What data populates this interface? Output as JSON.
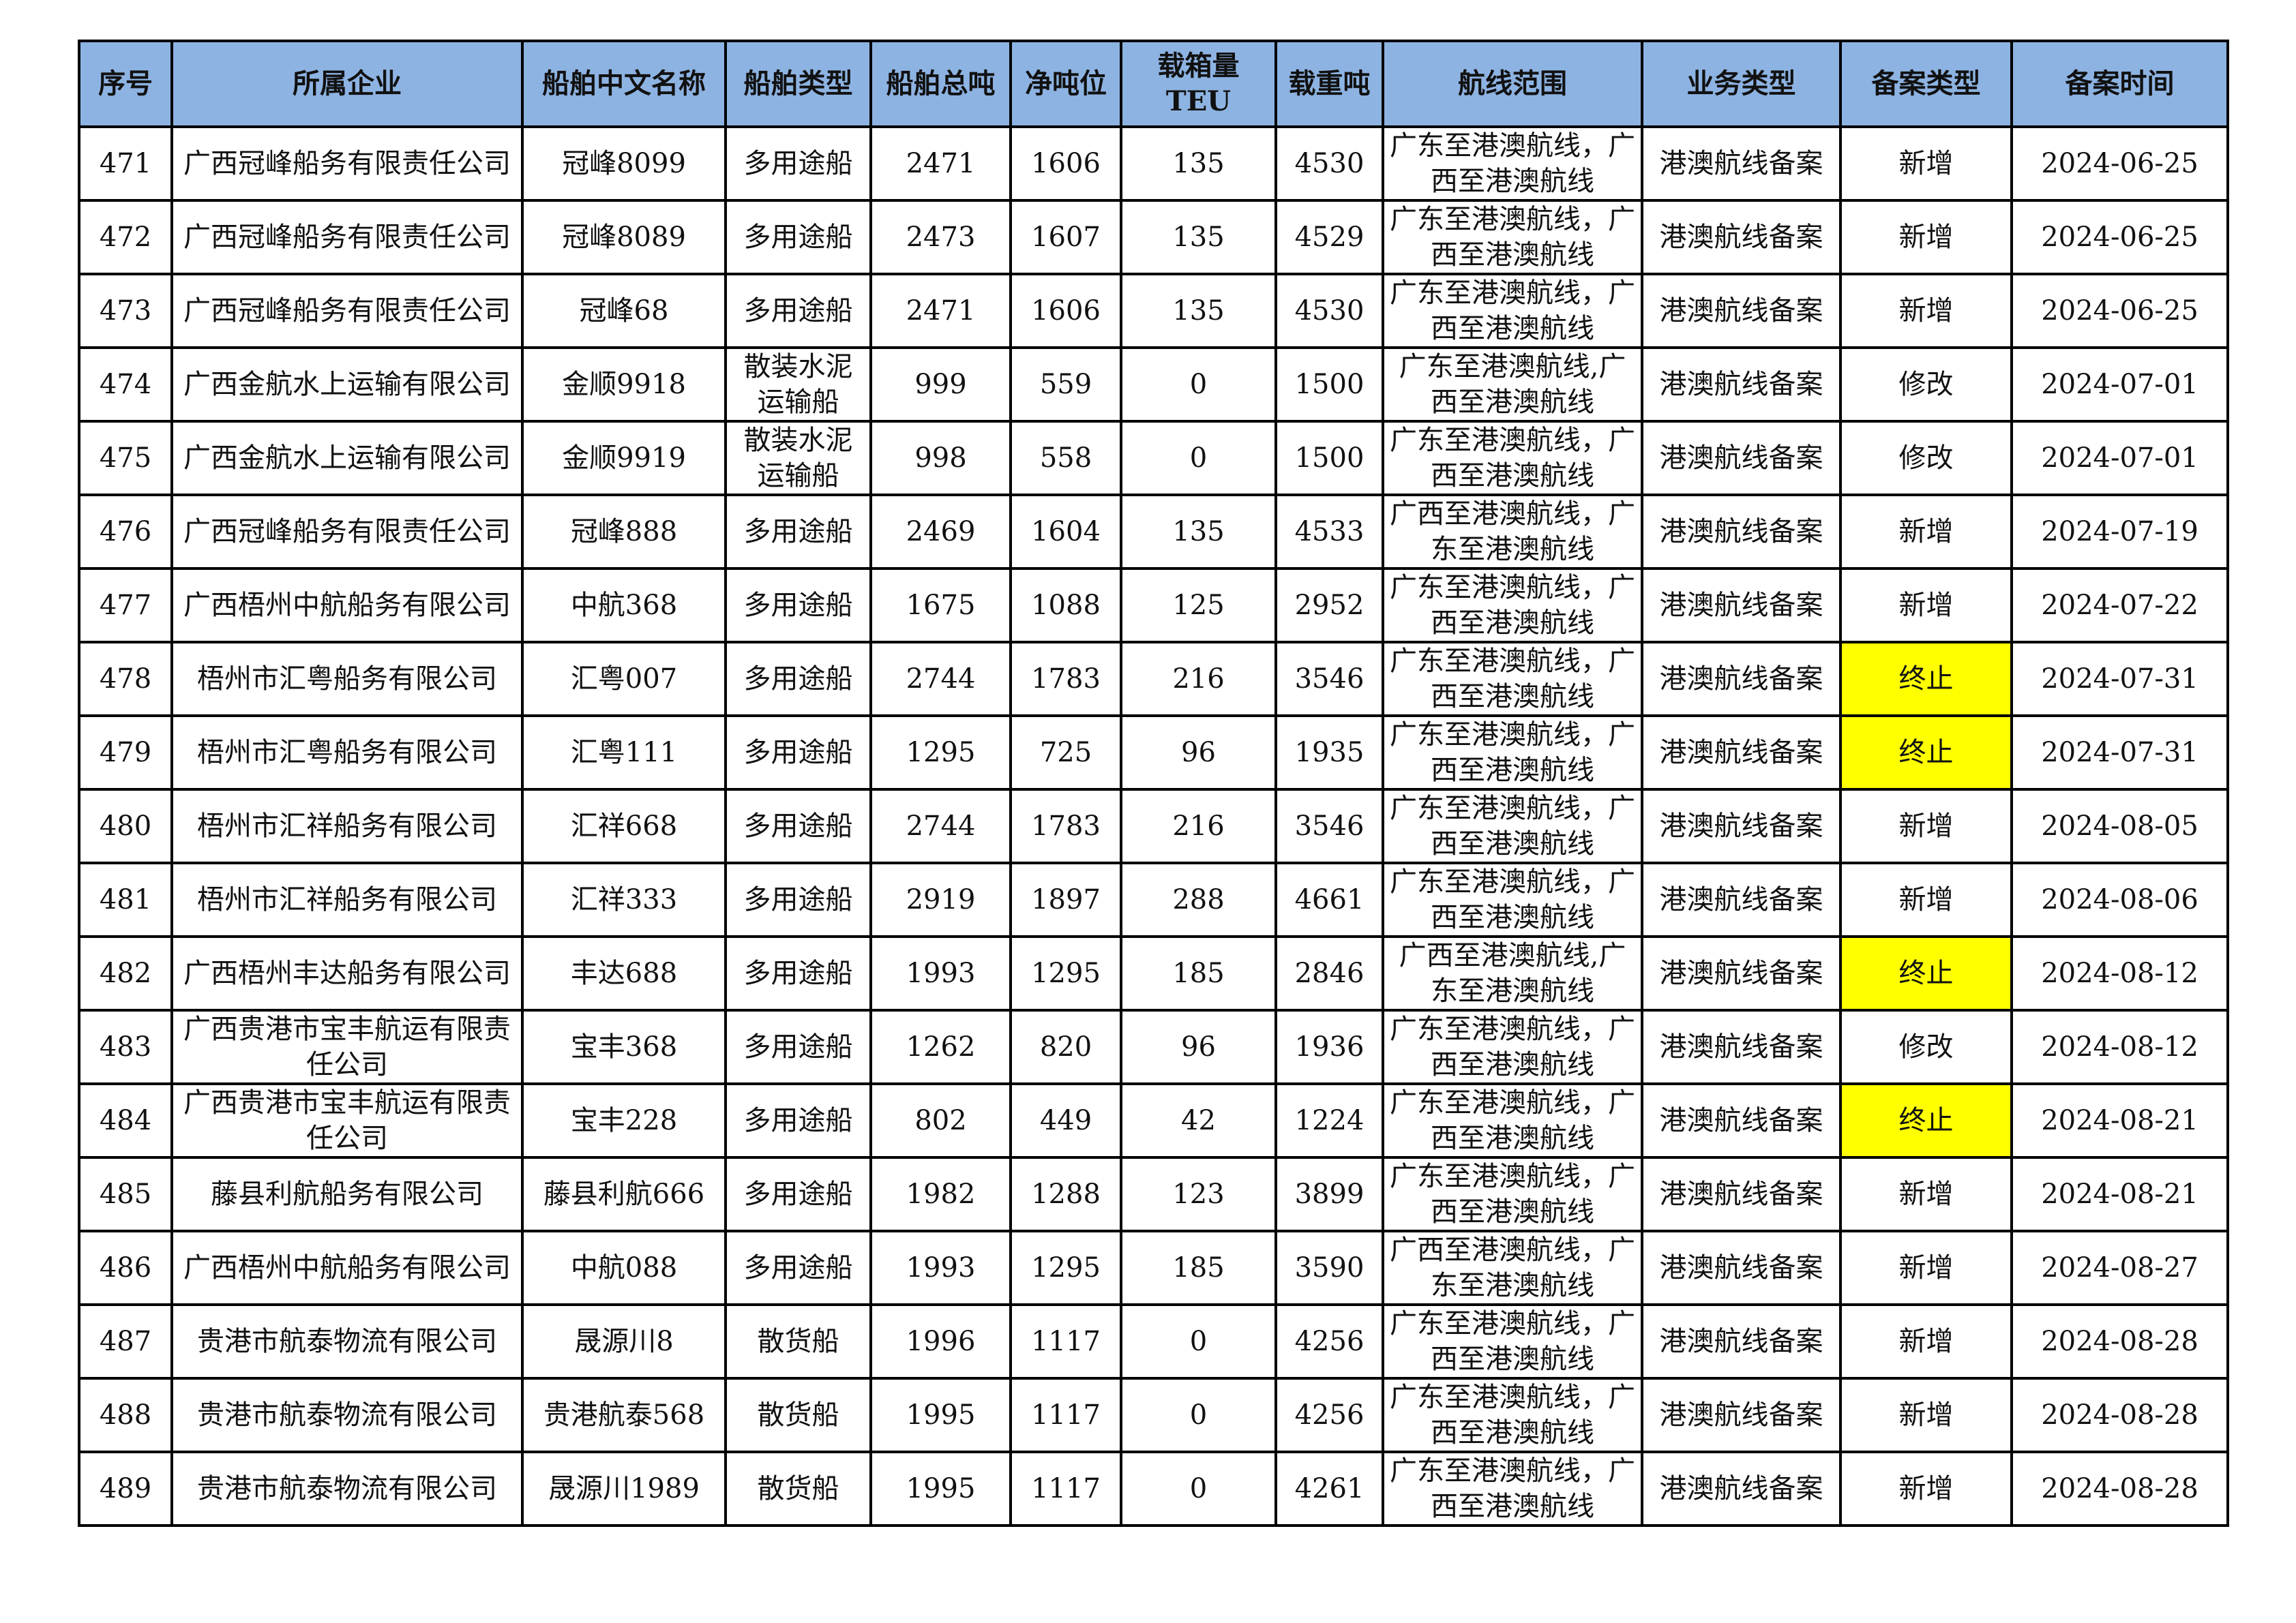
{
  "table": {
    "headers": [
      "序号",
      "所属企业",
      "船舶中文名称",
      "船舶类型",
      "船舶总吨",
      "净吨位",
      "载箱量TEU",
      "载重吨",
      "航线范围",
      "业务类型",
      "备案类型",
      "备案时间"
    ],
    "highlight_color": "#ffff00",
    "header_color": "#8db3e2",
    "rows": [
      [
        "471",
        "广西冠峰船务有限责任公司",
        "冠峰8099",
        "多用途船",
        "2471",
        "1606",
        "135",
        "4530",
        "广东至港澳航线，广西至港澳航线",
        "港澳航线备案",
        "新增",
        "2024-06-25"
      ],
      [
        "472",
        "广西冠峰船务有限责任公司",
        "冠峰8089",
        "多用途船",
        "2473",
        "1607",
        "135",
        "4529",
        "广东至港澳航线，广西至港澳航线",
        "港澳航线备案",
        "新增",
        "2024-06-25"
      ],
      [
        "473",
        "广西冠峰船务有限责任公司",
        "冠峰68",
        "多用途船",
        "2471",
        "1606",
        "135",
        "4530",
        "广东至港澳航线，广西至港澳航线",
        "港澳航线备案",
        "新增",
        "2024-06-25"
      ],
      [
        "474",
        "广西金航水上运输有限公司",
        "金顺9918",
        "散装水泥运输船",
        "999",
        "559",
        "0",
        "1500",
        "广东至港澳航线,广西至港澳航线",
        "港澳航线备案",
        "修改",
        "2024-07-01"
      ],
      [
        "475",
        "广西金航水上运输有限公司",
        "金顺9919",
        "散装水泥运输船",
        "998",
        "558",
        "0",
        "1500",
        "广东至港澳航线，广西至港澳航线",
        "港澳航线备案",
        "修改",
        "2024-07-01"
      ],
      [
        "476",
        "广西冠峰船务有限责任公司",
        "冠峰888",
        "多用途船",
        "2469",
        "1604",
        "135",
        "4533",
        "广西至港澳航线，广东至港澳航线",
        "港澳航线备案",
        "新增",
        "2024-07-19"
      ],
      [
        "477",
        "广西梧州中航船务有限公司",
        "中航368",
        "多用途船",
        "1675",
        "1088",
        "125",
        "2952",
        "广东至港澳航线，广西至港澳航线",
        "港澳航线备案",
        "新增",
        "2024-07-22"
      ],
      [
        "478",
        "梧州市汇粤船务有限公司",
        "汇粤007",
        "多用途船",
        "2744",
        "1783",
        "216",
        "3546",
        "广东至港澳航线，广西至港澳航线",
        "港澳航线备案",
        "终止",
        "2024-07-31"
      ],
      [
        "479",
        "梧州市汇粤船务有限公司",
        "汇粤111",
        "多用途船",
        "1295",
        "725",
        "96",
        "1935",
        "广东至港澳航线，广西至港澳航线",
        "港澳航线备案",
        "终止",
        "2024-07-31"
      ],
      [
        "480",
        "梧州市汇祥船务有限公司",
        "汇祥668",
        "多用途船",
        "2744",
        "1783",
        "216",
        "3546",
        "广东至港澳航线，广西至港澳航线",
        "港澳航线备案",
        "新增",
        "2024-08-05"
      ],
      [
        "481",
        "梧州市汇祥船务有限公司",
        "汇祥333",
        "多用途船",
        "2919",
        "1897",
        "288",
        "4661",
        "广东至港澳航线，广西至港澳航线",
        "港澳航线备案",
        "新增",
        "2024-08-06"
      ],
      [
        "482",
        "广西梧州丰达船务有限公司",
        "丰达688",
        "多用途船",
        "1993",
        "1295",
        "185",
        "2846",
        "广西至港澳航线,广东至港澳航线",
        "港澳航线备案",
        "终止",
        "2024-08-12"
      ],
      [
        "483",
        "广西贵港市宝丰航运有限责任公司",
        "宝丰368",
        "多用途船",
        "1262",
        "820",
        "96",
        "1936",
        "广东至港澳航线，广西至港澳航线",
        "港澳航线备案",
        "修改",
        "2024-08-12"
      ],
      [
        "484",
        "广西贵港市宝丰航运有限责任公司",
        "宝丰228",
        "多用途船",
        "802",
        "449",
        "42",
        "1224",
        "广东至港澳航线，广西至港澳航线",
        "港澳航线备案",
        "终止",
        "2024-08-21"
      ],
      [
        "485",
        "藤县利航船务有限公司",
        "藤县利航666",
        "多用途船",
        "1982",
        "1288",
        "123",
        "3899",
        "广东至港澳航线，广西至港澳航线",
        "港澳航线备案",
        "新增",
        "2024-08-21"
      ],
      [
        "486",
        "广西梧州中航船务有限公司",
        "中航088",
        "多用途船",
        "1993",
        "1295",
        "185",
        "3590",
        "广西至港澳航线，广东至港澳航线",
        "港澳航线备案",
        "新增",
        "2024-08-27"
      ],
      [
        "487",
        "贵港市航泰物流有限公司",
        "晟源川8",
        "散货船",
        "1996",
        "1117",
        "0",
        "4256",
        "广东至港澳航线，广西至港澳航线",
        "港澳航线备案",
        "新增",
        "2024-08-28"
      ],
      [
        "488",
        "贵港市航泰物流有限公司",
        "贵港航泰568",
        "散货船",
        "1995",
        "1117",
        "0",
        "4256",
        "广东至港澳航线，广西至港澳航线",
        "港澳航线备案",
        "新增",
        "2024-08-28"
      ],
      [
        "489",
        "贵港市航泰物流有限公司",
        "晟源川1989",
        "散货船",
        "1995",
        "1117",
        "0",
        "4261",
        "广东至港澳航线，广西至港澳航线",
        "港澳航线备案",
        "新增",
        "2024-08-28"
      ]
    ]
  }
}
